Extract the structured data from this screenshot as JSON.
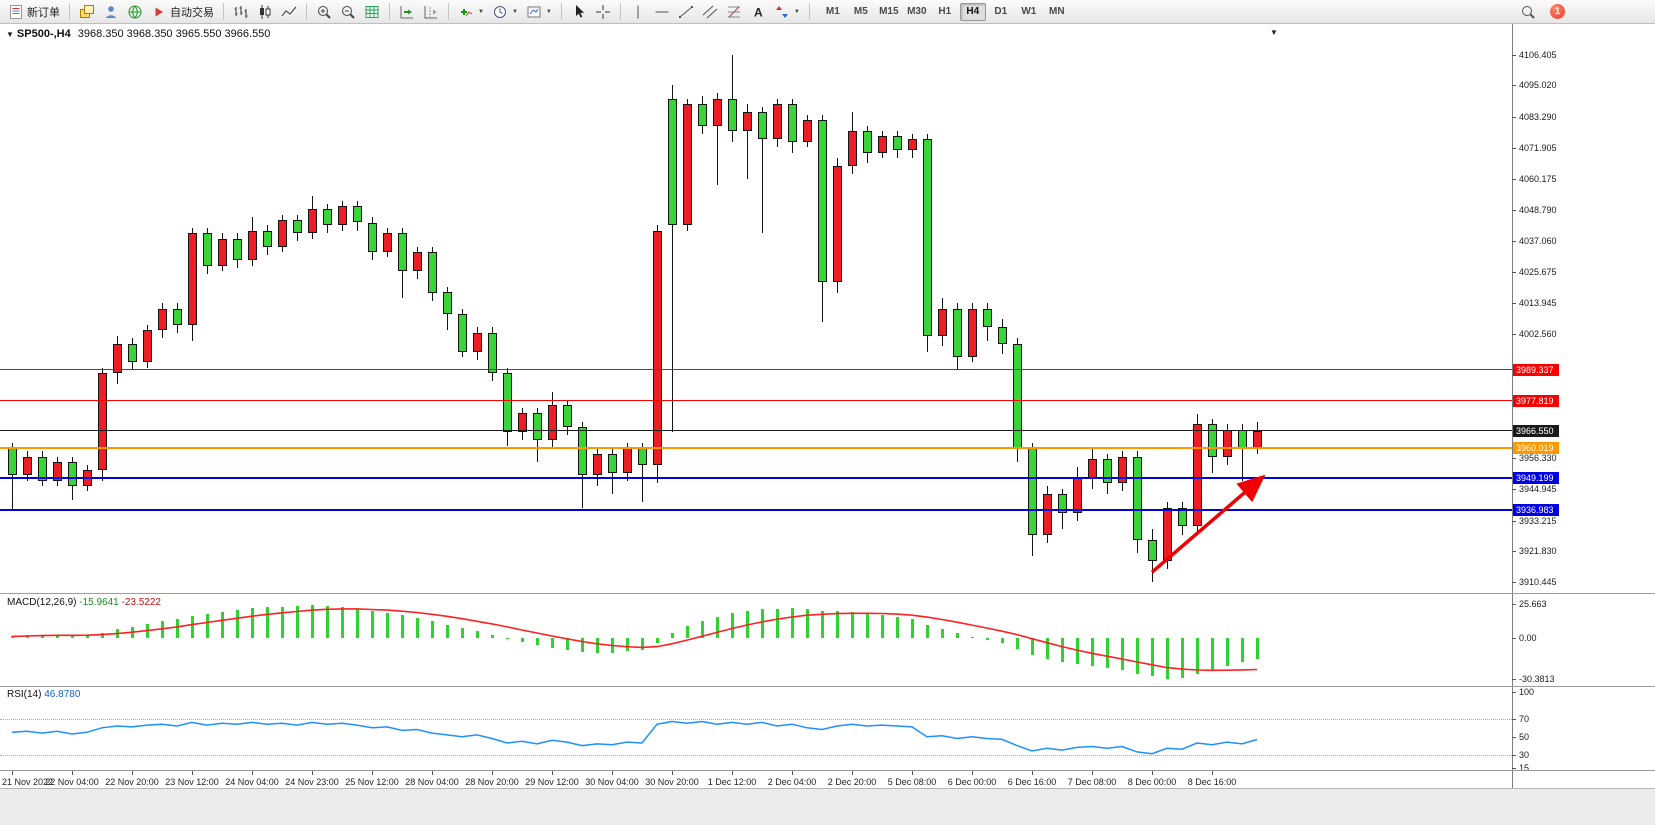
{
  "toolbar": {
    "new_order_label": "新订单",
    "auto_trading_label": "自动交易",
    "timeframes": [
      "M1",
      "M5",
      "M15",
      "M30",
      "H1",
      "H4",
      "D1",
      "W1",
      "MN"
    ],
    "active_timeframe": "H4",
    "notification_count": "1"
  },
  "chart_header": {
    "symbol_period": "SP500-,H4",
    "ohlc": "3968.350 3968.350 3965.550 3966.550"
  },
  "price_axis": {
    "labels": [
      "4106.405",
      "4095.020",
      "4083.290",
      "4071.905",
      "4060.175",
      "4048.790",
      "4037.060",
      "4025.675",
      "4013.945",
      "4002.560",
      "3956.330",
      "3944.945",
      "3933.215",
      "3921.830",
      "3910.445"
    ]
  },
  "macd_panel": {
    "name": "MACD(12,26,9)",
    "value_main": "-15.9641",
    "value_signal": "-23.5222",
    "axis_labels": [
      "25.663",
      "0.00",
      "-30.3813"
    ],
    "axis_values": [
      25.663,
      0,
      -30.3813
    ]
  },
  "rsi_panel": {
    "name": "RSI(14)",
    "value": "46.8780",
    "axis_labels": [
      "100",
      "70",
      "50",
      "30",
      "15"
    ],
    "axis_values": [
      100,
      70,
      50,
      30,
      15
    ],
    "levels": [
      70,
      30
    ]
  },
  "colors": {
    "candle_up": "#ee1c25",
    "candle_down": "#38d438",
    "macd_histogram": "#2fd32f",
    "macd_signal": "#ff2020",
    "rsi_line": "#1e90ff",
    "arrow": "#f00000"
  },
  "chart_data": [
    {
      "type": "candlestick",
      "symbol": "SP500-",
      "timeframe": "H4",
      "ylim": [
        3905,
        4112
      ],
      "x_labels": [
        "21 Nov 2022",
        "22 Nov 04:00",
        "22 Nov 20:00",
        "23 Nov 12:00",
        "24 Nov 04:00",
        "24 Nov 23:00",
        "25 Nov 12:00",
        "28 Nov 04:00",
        "28 Nov 20:00",
        "29 Nov 12:00",
        "30 Nov 04:00",
        "30 Nov 20:00",
        "1 Dec 12:00",
        "2 Dec 04:00",
        "2 Dec 20:00",
        "5 Dec 08:00",
        "6 Dec 00:00",
        "6 Dec 16:00",
        "7 Dec 08:00",
        "8 Dec 00:00",
        "8 Dec 16:00"
      ],
      "candles_ohlc": [
        [
          3960,
          3962,
          3937,
          3950
        ],
        [
          3950,
          3959,
          3948,
          3957
        ],
        [
          3957,
          3959,
          3946,
          3948
        ],
        [
          3948,
          3957,
          3946,
          3955
        ],
        [
          3955,
          3957,
          3941,
          3946
        ],
        [
          3946,
          3954,
          3944,
          3952
        ],
        [
          3952,
          3990,
          3948,
          3988
        ],
        [
          3988,
          4002,
          3984,
          3999
        ],
        [
          3999,
          4001,
          3989,
          3992
        ],
        [
          3992,
          4006,
          3990,
          4004
        ],
        [
          4004,
          4014,
          4001,
          4012
        ],
        [
          4012,
          4014,
          4003,
          4006
        ],
        [
          4006,
          4042,
          4000,
          4040
        ],
        [
          4040,
          4042,
          4025,
          4028
        ],
        [
          4028,
          4040,
          4026,
          4038
        ],
        [
          4038,
          4040,
          4027,
          4030
        ],
        [
          4030,
          4046,
          4028,
          4041
        ],
        [
          4041,
          4043,
          4032,
          4035
        ],
        [
          4035,
          4047,
          4033,
          4045
        ],
        [
          4045,
          4047,
          4037,
          4040
        ],
        [
          4040,
          4054,
          4038,
          4049
        ],
        [
          4049,
          4051,
          4040,
          4043
        ],
        [
          4043,
          4052,
          4041,
          4050
        ],
        [
          4050,
          4052,
          4041,
          4044
        ],
        [
          4044,
          4046,
          4030,
          4033
        ],
        [
          4033,
          4042,
          4031,
          4040
        ],
        [
          4040,
          4042,
          4016,
          4026
        ],
        [
          4026,
          4035,
          4023,
          4033
        ],
        [
          4033,
          4035,
          4015,
          4018
        ],
        [
          4018,
          4020,
          4004,
          4010
        ],
        [
          4010,
          4012,
          3994,
          3996
        ],
        [
          3996,
          4005,
          3993,
          4003
        ],
        [
          4003,
          4005,
          3985,
          3988
        ],
        [
          3988,
          3990,
          3961,
          3966
        ],
        [
          3966,
          3975,
          3963,
          3973
        ],
        [
          3973,
          3975,
          3955,
          3963
        ],
        [
          3963,
          3981,
          3960,
          3976
        ],
        [
          3976,
          3978,
          3965,
          3968
        ],
        [
          3968,
          3970,
          3938,
          3950
        ],
        [
          3950,
          3960,
          3946,
          3958
        ],
        [
          3958,
          3960,
          3943,
          3951
        ],
        [
          3951,
          3962,
          3948,
          3960
        ],
        [
          3960,
          3962,
          3940,
          3954
        ],
        [
          3954,
          4043,
          3947,
          4041
        ],
        [
          4090,
          4095,
          3966,
          4043
        ],
        [
          4043,
          4090,
          4041,
          4088
        ],
        [
          4088,
          4091,
          4077,
          4080
        ],
        [
          4080,
          4092,
          4058,
          4090
        ],
        [
          4090,
          4106.4,
          4074,
          4078
        ],
        [
          4078,
          4088,
          4060,
          4085
        ],
        [
          4085,
          4087,
          4040,
          4075
        ],
        [
          4075,
          4090,
          4072,
          4088
        ],
        [
          4088,
          4090,
          4070,
          4074
        ],
        [
          4074,
          4084,
          4072,
          4082
        ],
        [
          4082,
          4084,
          4007,
          4022
        ],
        [
          4022,
          4068,
          4018,
          4065
        ],
        [
          4065,
          4085,
          4062,
          4078
        ],
        [
          4078,
          4080,
          4066,
          4070
        ],
        [
          4070,
          4078,
          4068,
          4076
        ],
        [
          4076,
          4078,
          4068,
          4071
        ],
        [
          4071,
          4077,
          4068,
          4075
        ],
        [
          4075,
          4077,
          3996,
          4002
        ],
        [
          4002,
          4016,
          3998,
          4012
        ],
        [
          4012,
          4014,
          3989,
          3994
        ],
        [
          3994,
          4014,
          3992,
          4012
        ],
        [
          4012,
          4014,
          4000,
          4005
        ],
        [
          4005,
          4008,
          3995,
          3999
        ],
        [
          3999,
          4001,
          3955,
          3960
        ],
        [
          3960,
          3962,
          3920,
          3928
        ],
        [
          3928,
          3946,
          3925,
          3943
        ],
        [
          3943,
          3945,
          3930,
          3936
        ],
        [
          3936,
          3953,
          3933,
          3949
        ],
        [
          3949,
          3960,
          3945,
          3956
        ],
        [
          3956,
          3958,
          3943,
          3947
        ],
        [
          3947,
          3959,
          3944,
          3957
        ],
        [
          3957,
          3959,
          3921,
          3926
        ],
        [
          3926,
          3930,
          3910.4,
          3918
        ],
        [
          3918,
          3940,
          3915,
          3938
        ],
        [
          3938,
          3940,
          3928,
          3931
        ],
        [
          3931,
          3973,
          3929,
          3969
        ],
        [
          3969,
          3971,
          3951,
          3957
        ],
        [
          3957,
          3969,
          3954,
          3967
        ],
        [
          3967,
          3969,
          3948,
          3960
        ],
        [
          3960,
          3970,
          3958,
          3966.5
        ]
      ],
      "horizontal_lines": [
        {
          "label": "3989.337",
          "price": 3989.337,
          "color": "#f80000",
          "thickness": 1,
          "role": "resistance-line"
        },
        {
          "label": "3977.819",
          "price": 3977.819,
          "color": "#f80000",
          "thickness": 1,
          "role": "resistance-line"
        },
        {
          "label": "3966.550",
          "price": 3966.55,
          "color": "#1a1a1a",
          "thickness": 1,
          "role": "current-price-line"
        },
        {
          "label": "3960.019",
          "price": 3960.019,
          "color": "#ff9800",
          "thickness": 2,
          "role": "support-line"
        },
        {
          "label": "3949.199",
          "price": 3949.199,
          "color": "#0000e0",
          "thickness": 2,
          "role": "support-line"
        },
        {
          "label": "3936.983",
          "price": 3936.983,
          "color": "#0000e0",
          "thickness": 2,
          "role": "support-line"
        }
      ],
      "annotation_arrow": {
        "from": {
          "index": 76,
          "price": 3914
        },
        "to": {
          "index": 83.3,
          "price": 3949
        }
      }
    },
    {
      "type": "bar",
      "name": "MACD(12,26,9)",
      "ylim": [
        -35,
        33
      ],
      "values": [
        1.5,
        2,
        2.2,
        2.5,
        2,
        2.3,
        4,
        6.5,
        8.5,
        10.5,
        12.5,
        14,
        16.5,
        18,
        19.5,
        21,
        22.5,
        23,
        23.5,
        24,
        24.5,
        24,
        23,
        21.5,
        20,
        18.5,
        17,
        15,
        12.5,
        10,
        7.5,
        5,
        2.5,
        -0.5,
        -3,
        -5.5,
        -7.5,
        -9,
        -10.5,
        -11,
        -11,
        -10,
        -9,
        -4,
        4,
        9,
        13,
        16,
        18.5,
        20,
        21.5,
        22,
        22.5,
        22,
        20.5,
        20,
        19.5,
        18.5,
        17.5,
        16,
        14,
        10,
        6.5,
        3.5,
        1,
        -1.5,
        -4,
        -8,
        -12.5,
        -15.5,
        -18,
        -19.5,
        -21,
        -22.5,
        -24,
        -26.5,
        -28.5,
        -30.38,
        -29.5,
        -26.5,
        -23.5,
        -20.5,
        -18,
        -15.96
      ],
      "signal": [
        1.2,
        1.5,
        1.8,
        2,
        2,
        2.1,
        2.5,
        3.3,
        4.3,
        5.5,
        6.9,
        8.3,
        10,
        11.6,
        13.2,
        14.7,
        16.3,
        17.6,
        18.8,
        19.8,
        20.8,
        21.4,
        21.7,
        21.7,
        21.3,
        20.8,
        20,
        19,
        17.7,
        16.2,
        14.4,
        12.5,
        10.5,
        8.3,
        6,
        3.7,
        1.5,
        -0.6,
        -2.6,
        -4.3,
        -5.6,
        -6.5,
        -7,
        -6.4,
        -4.3,
        -1.6,
        1.3,
        4.2,
        7.1,
        9.7,
        12,
        14,
        15.7,
        17,
        17.7,
        18.2,
        18.4,
        18.4,
        18.3,
        17.8,
        17,
        15.6,
        13.8,
        11.8,
        9.6,
        7.4,
        5.1,
        2.5,
        -0.5,
        -3.5,
        -6.4,
        -9,
        -11.4,
        -13.6,
        -15.7,
        -17.9,
        -20,
        -22.1,
        -23.2,
        -23.9,
        -24.1,
        -24,
        -23.8,
        -23.52
      ]
    },
    {
      "type": "line",
      "name": "RSI(14)",
      "ylim": [
        0,
        100
      ],
      "levels": [
        70,
        30
      ],
      "values": [
        55,
        56,
        54,
        56,
        53,
        55,
        60,
        62,
        61,
        63,
        64,
        62,
        66,
        63,
        65,
        64,
        66,
        64,
        65,
        63,
        66,
        64,
        65,
        63,
        60,
        61,
        57,
        58,
        54,
        52,
        50,
        52,
        48,
        43,
        45,
        42,
        46,
        44,
        40,
        42,
        41,
        44,
        43,
        64,
        67,
        65,
        67,
        64,
        66,
        64,
        66,
        62,
        64,
        60,
        58,
        62,
        64,
        62,
        63,
        62,
        61,
        50,
        51,
        48,
        50,
        48,
        47,
        40,
        34,
        37,
        35,
        38,
        39,
        37,
        39,
        33,
        31,
        37,
        36,
        43,
        41,
        44,
        42,
        46.88
      ]
    }
  ]
}
